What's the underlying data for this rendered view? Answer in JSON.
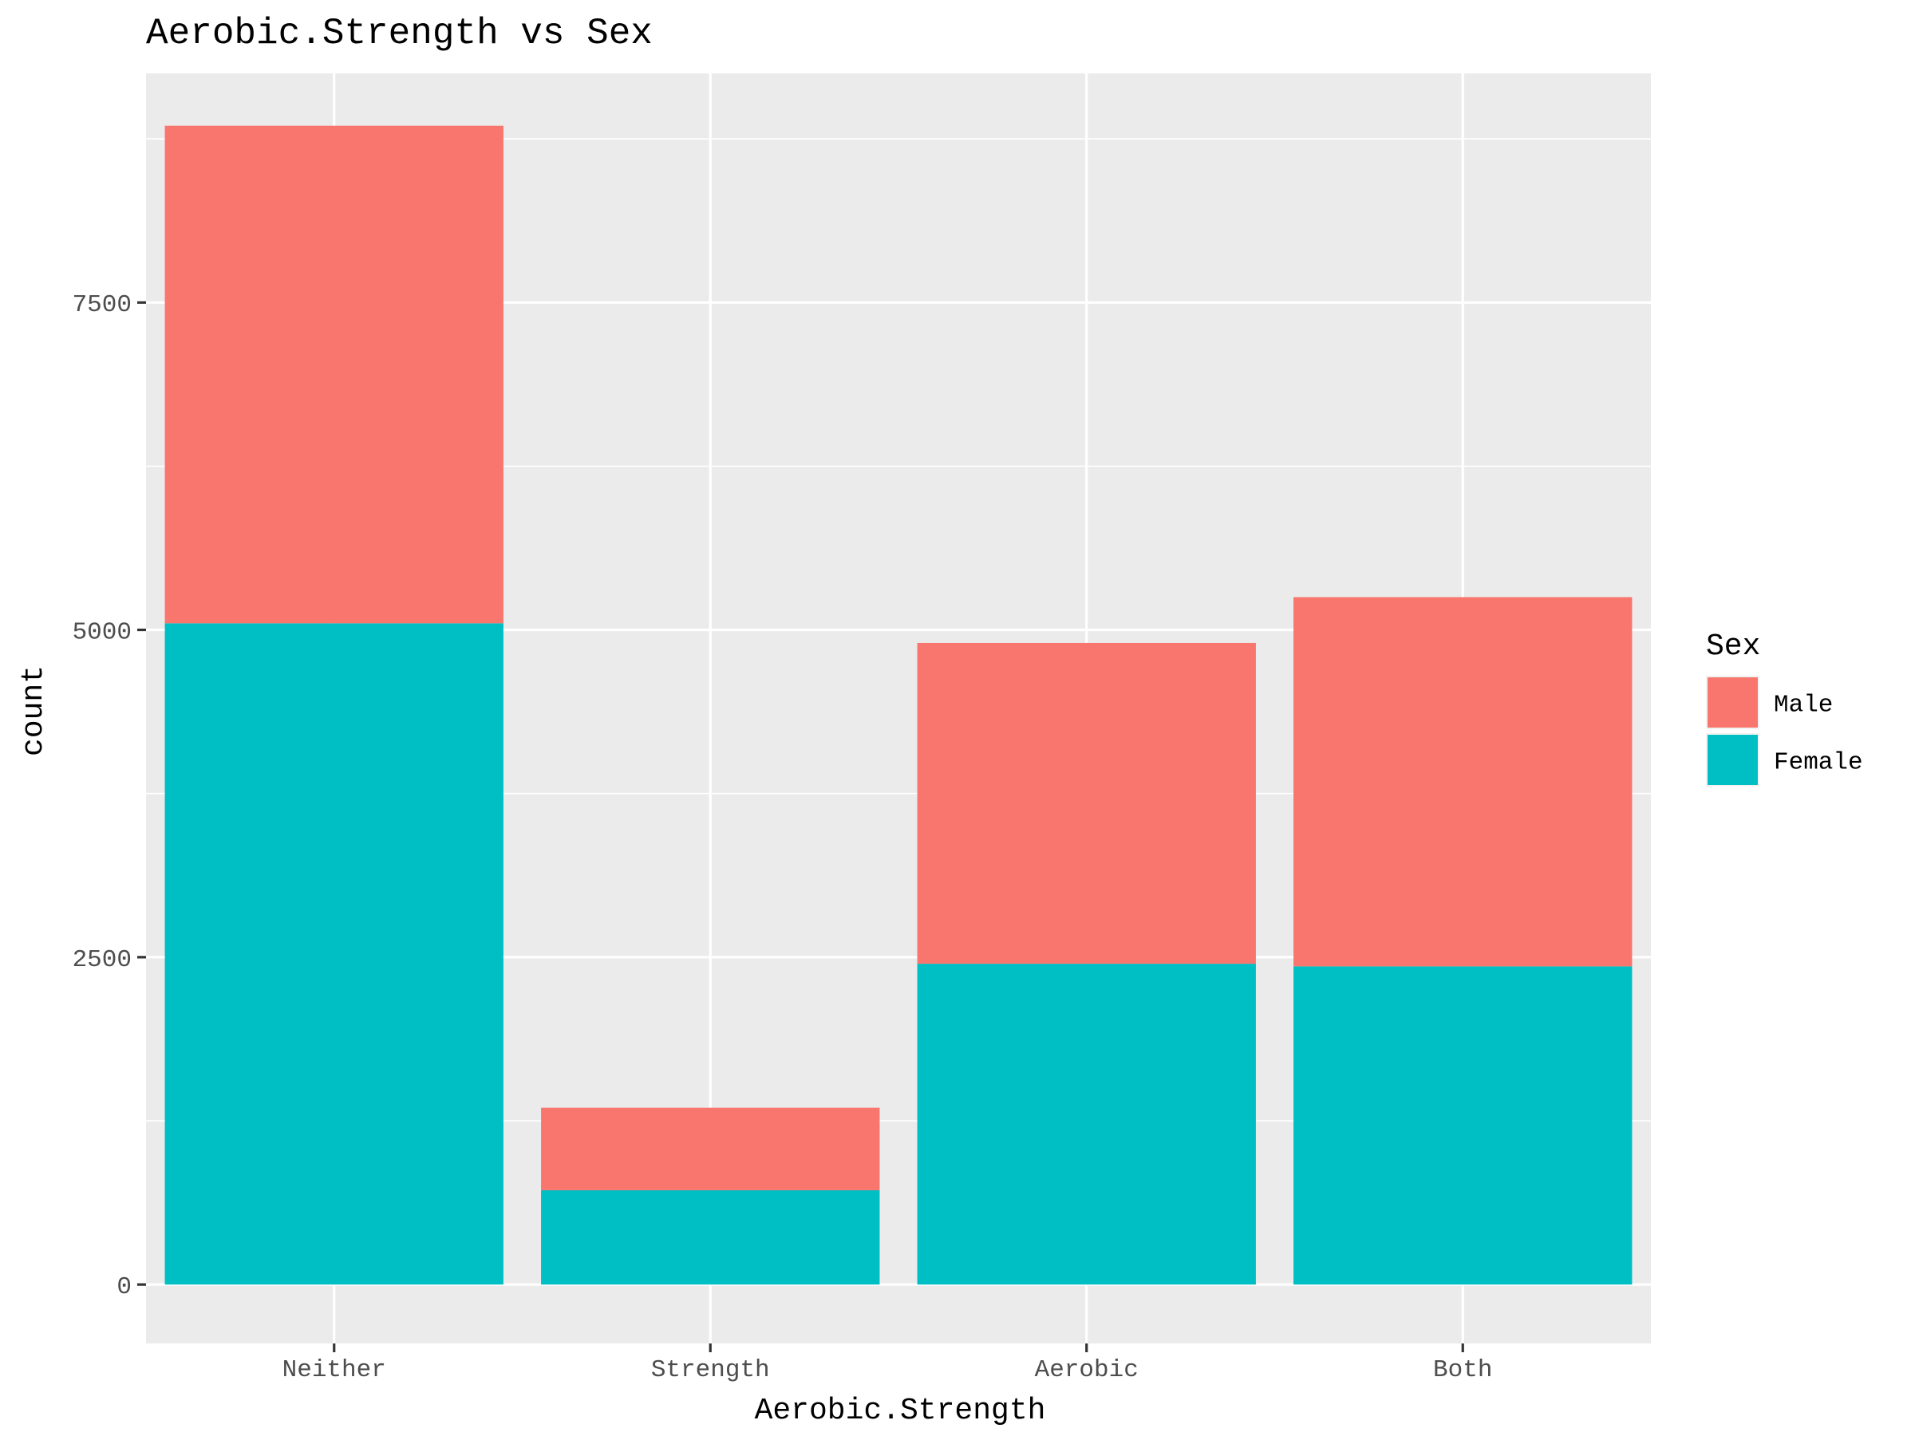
{
  "chart_data": {
    "type": "bar",
    "stacked": true,
    "title": "Aerobic.Strength vs Sex",
    "xlabel": "Aerobic.Strength",
    "ylabel": "count",
    "categories": [
      "Neither",
      "Strength",
      "Aerobic",
      "Both"
    ],
    "series": [
      {
        "name": "Female",
        "color": "#00BFC4",
        "values": [
          5050,
          720,
          2450,
          2430
        ]
      },
      {
        "name": "Male",
        "color": "#F8766D",
        "values": [
          3800,
          630,
          2450,
          2820
        ]
      }
    ],
    "stack_order_bottom_to_top": [
      "Female",
      "Male"
    ],
    "ylim": [
      -450,
      9250
    ],
    "yticks": [
      0,
      2500,
      5000,
      7500
    ],
    "ytick_labels": [
      "0",
      "2500",
      "5000",
      "7500"
    ],
    "grid": true,
    "legend": {
      "title": "Sex",
      "position": "right",
      "entries": [
        {
          "label": "Male",
          "color": "#F8766D"
        },
        {
          "label": "Female",
          "color": "#00BFC4"
        }
      ]
    }
  }
}
